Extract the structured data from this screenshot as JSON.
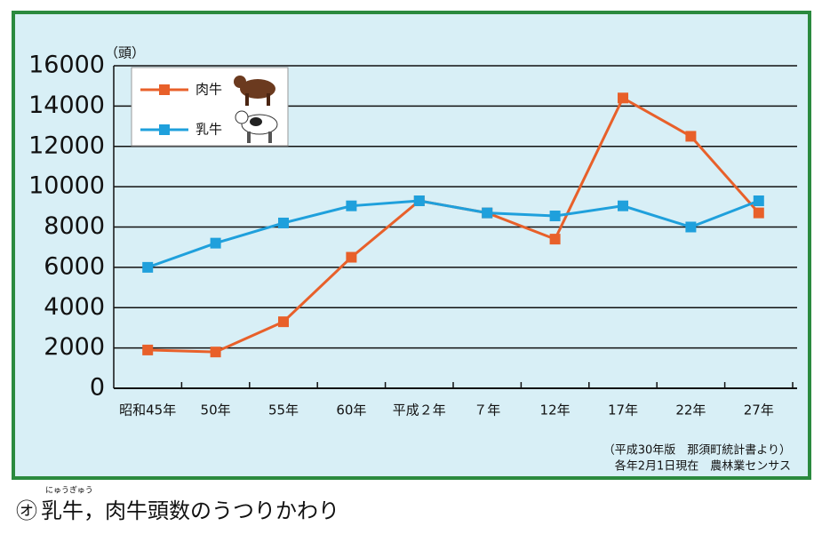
{
  "chart_data": {
    "type": "line",
    "unit_label": "（頭）",
    "categories": [
      "昭和45年",
      "50年",
      "55年",
      "60年",
      "平成２年",
      "７年",
      "12年",
      "17年",
      "22年",
      "27年"
    ],
    "series": [
      {
        "name": "肉牛",
        "color": "#e8602a",
        "values": [
          1900,
          1800,
          3300,
          6500,
          9300,
          8700,
          7400,
          14400,
          12500,
          8700
        ]
      },
      {
        "name": "乳牛",
        "color": "#1fa0dc",
        "values": [
          6000,
          7200,
          8200,
          9050,
          9300,
          8700,
          8550,
          9050,
          8000,
          9300
        ]
      }
    ],
    "ylim": [
      0,
      16000
    ],
    "yticks": [
      0,
      2000,
      4000,
      6000,
      8000,
      10000,
      12000,
      14000,
      16000
    ],
    "grid": true,
    "source_notes": [
      "（平成30年版　那須町統計書より）",
      "各年2月1日現在　農林業センサス"
    ],
    "caption_mark": "㋔",
    "caption_ruby": "にゅうぎゅう",
    "caption": "乳牛，肉牛頭数のうつりかわり"
  }
}
